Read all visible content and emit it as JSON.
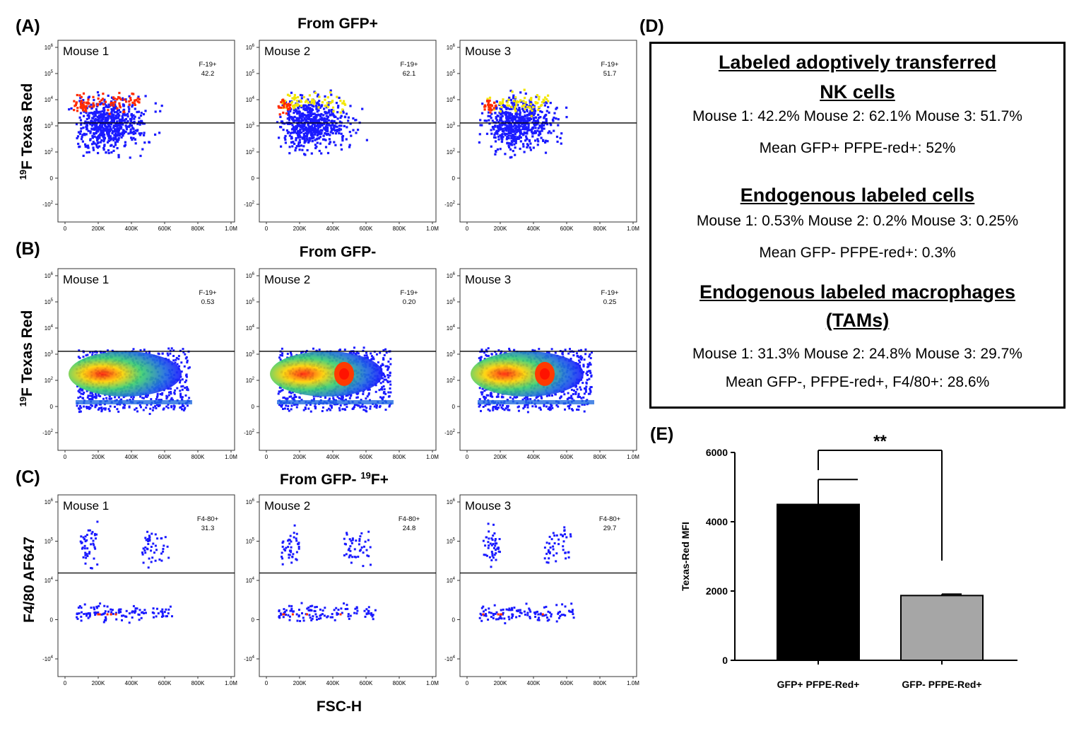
{
  "panel_letters": {
    "a": "(A)",
    "b": "(B)",
    "c": "(C)",
    "d": "(D)",
    "e": "(E)"
  },
  "row_titles": {
    "a": "From GFP+",
    "b": "From GFP-",
    "c_pre": "From GFP- ",
    "c_sup": "19",
    "c_post": "F+"
  },
  "y_axis_labels": {
    "a": {
      "sup": "19",
      "main": "F Texas Red"
    },
    "b": {
      "sup": "19",
      "main": "F Texas Red"
    },
    "c": {
      "main": "F4/80 AF647"
    }
  },
  "x_axis_label": "FSC-H",
  "x_ticks": [
    "0",
    "200K",
    "400K",
    "600K",
    "800K",
    "1.0M"
  ],
  "y_ticks_ab": [
    {
      "base": "10",
      "exp": "6"
    },
    {
      "base": "10",
      "exp": "5"
    },
    {
      "base": "10",
      "exp": "4"
    },
    {
      "base": "10",
      "exp": "3"
    },
    {
      "base": "10",
      "exp": "2"
    },
    {
      "base": "0",
      "exp": ""
    },
    {
      "base": "-10",
      "exp": "2"
    }
  ],
  "y_ticks_c": [
    {
      "base": "10",
      "exp": "6"
    },
    {
      "base": "10",
      "exp": "5"
    },
    {
      "base": "10",
      "exp": "4"
    },
    {
      "base": "0",
      "exp": ""
    },
    {
      "base": "-10",
      "exp": "4"
    }
  ],
  "flow_panels": {
    "a": [
      {
        "mouse": "Mouse 1",
        "gate": "F-19+",
        "value": "42.2"
      },
      {
        "mouse": "Mouse 2",
        "gate": "F-19+",
        "value": "62.1"
      },
      {
        "mouse": "Mouse 3",
        "gate": "F-19+",
        "value": "51.7"
      }
    ],
    "b": [
      {
        "mouse": "Mouse 1",
        "gate": "F-19+",
        "value": "0.53"
      },
      {
        "mouse": "Mouse 2",
        "gate": "F-19+",
        "value": "0.20"
      },
      {
        "mouse": "Mouse 3",
        "gate": "F-19+",
        "value": "0.25"
      }
    ],
    "c": [
      {
        "mouse": "Mouse 1",
        "gate": "F4-80+",
        "value": "31.3"
      },
      {
        "mouse": "Mouse 2",
        "gate": "F4-80+",
        "value": "24.8"
      },
      {
        "mouse": "Mouse 3",
        "gate": "F4-80+",
        "value": "29.7"
      }
    ]
  },
  "summary_box": {
    "h1_line1": "Labeled adoptively transferred",
    "h1_line2": "NK cells",
    "l1": "Mouse 1: 42.2% Mouse 2: 62.1% Mouse 3: 51.7%",
    "l2": "Mean GFP+ PFPE-red+: 52%",
    "h2": "Endogenous labeled cells",
    "l3": "Mouse 1: 0.53% Mouse 2: 0.2% Mouse 3: 0.25%",
    "l4": "Mean GFP- PFPE-red+: 0.3%",
    "h3_line1": "Endogenous labeled macrophages",
    "h3_line2": "(TAMs)",
    "l5": "Mouse 1: 31.3% Mouse 2: 24.8% Mouse 3: 29.7%",
    "l6": "Mean GFP-, PFPE-red+, F4/80+: 28.6%"
  },
  "colors": {
    "bar_black": "#000000",
    "bar_gray": "#a6a6a6",
    "dot_blue": "#1a1aff",
    "dot_red": "#ff2a00",
    "dot_yellow": "#f2e600"
  },
  "chart_data": {
    "type": "bar",
    "categories": [
      "GFP+ PFPE-Red+",
      "GFP- PFPE-Red+"
    ],
    "values": [
      4500,
      1870
    ],
    "error_upper": [
      5220,
      1910
    ],
    "ylabel": "Texas-Red MFI",
    "ylim": [
      0,
      6000
    ],
    "yticks": [
      0,
      2000,
      4000,
      6000
    ],
    "significance": "**"
  }
}
